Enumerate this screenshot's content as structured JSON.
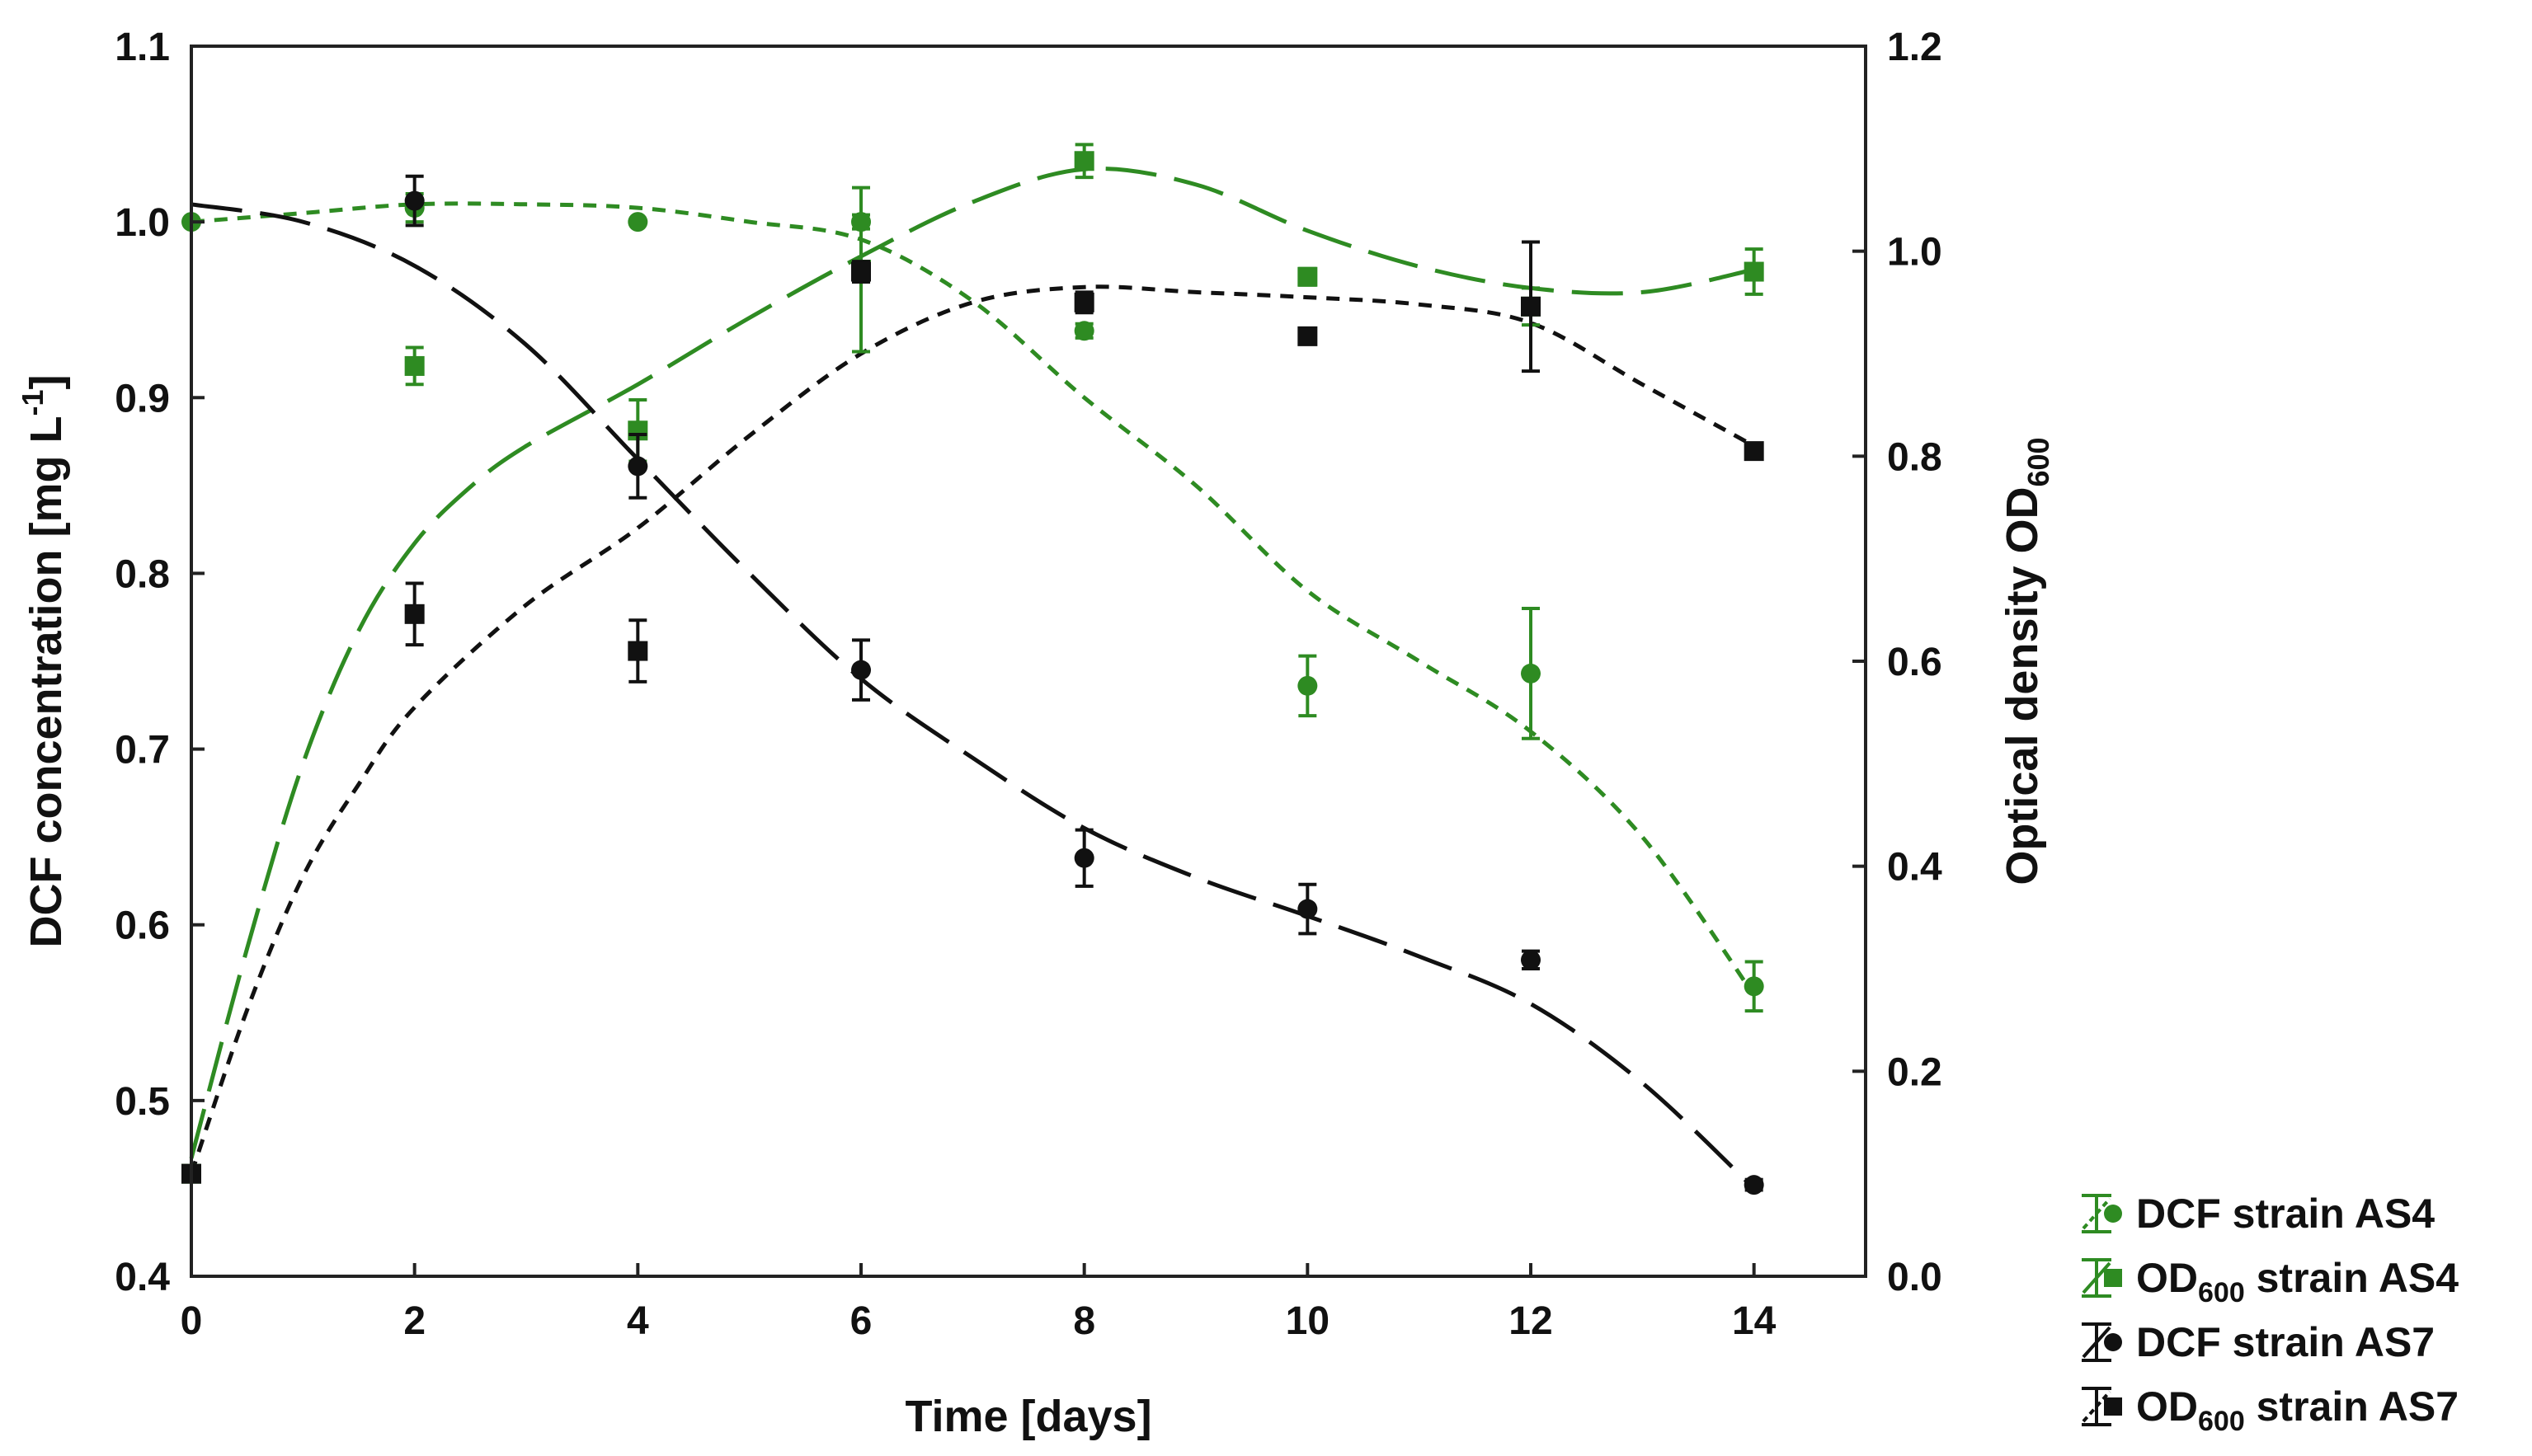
{
  "chart_data": {
    "type": "scatter",
    "x_axis": {
      "label": "Time [days]",
      "lim": [
        0,
        15
      ],
      "ticks": [
        0,
        2,
        4,
        6,
        8,
        10,
        12,
        14
      ],
      "tick_labels": [
        "0",
        "2",
        "4",
        "6",
        "8",
        "10",
        "12",
        "14"
      ]
    },
    "y_left": {
      "label_main": "DCF concentration [mg L",
      "label_sup": "-1",
      "label_end": "]",
      "lim": [
        0.4,
        1.1
      ],
      "ticks": [
        0.4,
        0.5,
        0.6,
        0.7,
        0.8,
        0.9,
        1.0,
        1.1
      ],
      "tick_labels": [
        "0.4",
        "0.5",
        "0.6",
        "0.7",
        "0.8",
        "0.9",
        "1.0",
        "1.1"
      ]
    },
    "y_right": {
      "label_main": "Optical density OD",
      "label_sub": "600",
      "lim": [
        0.0,
        1.2
      ],
      "ticks": [
        0.0,
        0.2,
        0.4,
        0.6,
        0.8,
        1.0,
        1.2
      ],
      "tick_labels": [
        "0.0",
        "0.2",
        "0.4",
        "0.6",
        "0.8",
        "1.0",
        "1.2"
      ]
    },
    "grid": false,
    "legend_position": "bottom-right, outside plot",
    "series": [
      {
        "name": "DCF strain AS4",
        "axis": "left",
        "color": "#2e8b22",
        "marker": "circle",
        "fit_line": "short-dash",
        "x": [
          0,
          2,
          4,
          6,
          8,
          10,
          12,
          14
        ],
        "y": [
          1.0,
          1.008,
          1.0,
          1.0,
          0.938,
          0.736,
          0.743,
          0.565
        ],
        "err": [
          0,
          0.008,
          0,
          0.004,
          0.004,
          0.017,
          0.037,
          0.014
        ],
        "fit": [
          [
            0,
            1.0
          ],
          [
            1,
            1.005
          ],
          [
            2,
            1.01
          ],
          [
            3,
            1.01
          ],
          [
            4,
            1.008
          ],
          [
            5,
            1.0
          ],
          [
            6,
            0.99
          ],
          [
            7,
            0.955
          ],
          [
            8,
            0.9
          ],
          [
            9,
            0.85
          ],
          [
            10,
            0.79
          ],
          [
            11,
            0.75
          ],
          [
            12,
            0.71
          ],
          [
            13,
            0.65
          ],
          [
            14,
            0.56
          ]
        ]
      },
      {
        "name_main": "OD",
        "name_sub": "600",
        "name_end": " strain AS4",
        "axis": "right",
        "color": "#2e8b22",
        "marker": "square",
        "fit_line": "long-dash",
        "x": [
          0,
          2,
          4,
          6,
          8,
          10,
          12,
          14
        ],
        "y": [
          0.1,
          0.888,
          0.825,
          0.982,
          1.088,
          0.975,
          0.946,
          0.98
        ],
        "err": [
          0,
          0.018,
          0.03,
          0.08,
          0.016,
          0.008,
          0.018,
          0.022
        ],
        "fit": [
          [
            0,
            0.115
          ],
          [
            0.5,
            0.32
          ],
          [
            1,
            0.5
          ],
          [
            1.5,
            0.63
          ],
          [
            2,
            0.715
          ],
          [
            2.5,
            0.77
          ],
          [
            3,
            0.81
          ],
          [
            4,
            0.87
          ],
          [
            5,
            0.935
          ],
          [
            6,
            0.995
          ],
          [
            7,
            1.048
          ],
          [
            8,
            1.08
          ],
          [
            9,
            1.065
          ],
          [
            10,
            1.02
          ],
          [
            11,
            0.985
          ],
          [
            12,
            0.964
          ],
          [
            13,
            0.96
          ],
          [
            14,
            0.982
          ]
        ]
      },
      {
        "name": "DCF strain AS7",
        "axis": "left",
        "color": "#111111",
        "marker": "circle",
        "fit_line": "long-dash",
        "x": [
          2,
          4,
          6,
          8,
          10,
          12,
          14
        ],
        "y": [
          1.012,
          0.861,
          0.745,
          0.638,
          0.609,
          0.58,
          0.452
        ],
        "err": [
          0.014,
          0.018,
          0.017,
          0.016,
          0.014,
          0.005,
          0.003
        ],
        "fit": [
          [
            0,
            1.01
          ],
          [
            1,
            1.0
          ],
          [
            2,
            0.975
          ],
          [
            3,
            0.93
          ],
          [
            4,
            0.865
          ],
          [
            5,
            0.8
          ],
          [
            6,
            0.74
          ],
          [
            7,
            0.695
          ],
          [
            8,
            0.655
          ],
          [
            9,
            0.627
          ],
          [
            10,
            0.605
          ],
          [
            11,
            0.582
          ],
          [
            12,
            0.555
          ],
          [
            13,
            0.51
          ],
          [
            14,
            0.45
          ]
        ]
      },
      {
        "name_main": "OD",
        "name_sub": "600",
        "name_end": " strain AS7",
        "axis": "right",
        "color": "#111111",
        "marker": "square",
        "fit_line": "short-dash",
        "x": [
          0,
          2,
          4,
          6,
          8,
          10,
          12,
          14
        ],
        "y": [
          0.1,
          0.646,
          0.61,
          0.98,
          0.95,
          0.917,
          0.946,
          0.805
        ],
        "err": [
          0,
          0.03,
          0.03,
          0.01,
          0.01,
          0,
          0.063,
          0
        ],
        "fit": [
          [
            0,
            0.1
          ],
          [
            0.5,
            0.26
          ],
          [
            1,
            0.39
          ],
          [
            1.5,
            0.48
          ],
          [
            2,
            0.555
          ],
          [
            3,
            0.655
          ],
          [
            4,
            0.73
          ],
          [
            5,
            0.82
          ],
          [
            6,
            0.9
          ],
          [
            7,
            0.95
          ],
          [
            8,
            0.965
          ],
          [
            9,
            0.96
          ],
          [
            10,
            0.955
          ],
          [
            11,
            0.948
          ],
          [
            12,
            0.93
          ],
          [
            13,
            0.87
          ],
          [
            14,
            0.81
          ]
        ]
      }
    ]
  }
}
